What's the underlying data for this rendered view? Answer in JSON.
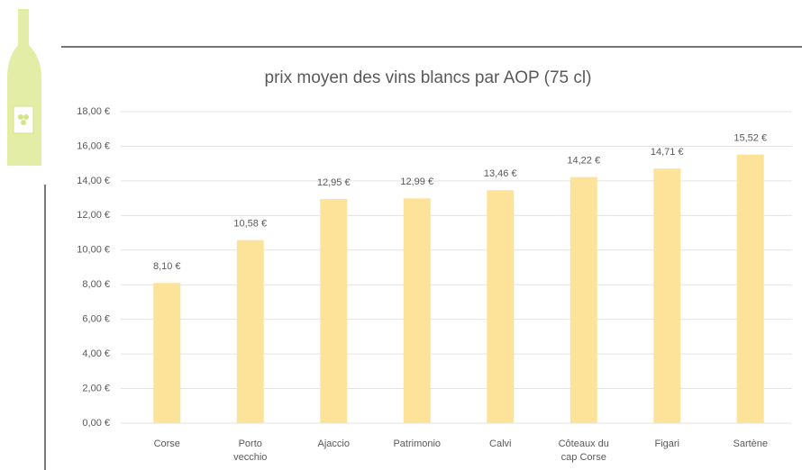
{
  "chart_data": {
    "type": "bar",
    "title": "prix moyen des vins blancs par AOP (75 cl)",
    "categories": [
      "Corse",
      "Porto vecchio",
      "Ajaccio",
      "Patrimonio",
      "Calvi",
      "Côteaux du cap Corse",
      "Figari",
      "Sartène"
    ],
    "values": [
      8.1,
      10.58,
      12.95,
      12.99,
      13.46,
      14.22,
      14.71,
      15.52
    ],
    "value_labels": [
      "8,10 €",
      "10,58 €",
      "12,95 €",
      "12,99 €",
      "13,46 €",
      "14,22 €",
      "14,71 €",
      "15,52 €"
    ],
    "color": "#fde39a",
    "ylim": [
      0,
      18
    ],
    "yticks": [
      {
        "value": 0,
        "label": "0,00 €"
      },
      {
        "value": 2,
        "label": "2,00 €"
      },
      {
        "value": 4,
        "label": "4,00 €"
      },
      {
        "value": 6,
        "label": "6,00 €"
      },
      {
        "value": 8,
        "label": "8,00 €"
      },
      {
        "value": 10,
        "label": "10,00 €"
      },
      {
        "value": 12,
        "label": "12,00 €"
      },
      {
        "value": 14,
        "label": "14,00 €"
      },
      {
        "value": 16,
        "label": "16,00 €"
      },
      {
        "value": 18,
        "label": "18,00 €"
      }
    ],
    "grid": true
  }
}
